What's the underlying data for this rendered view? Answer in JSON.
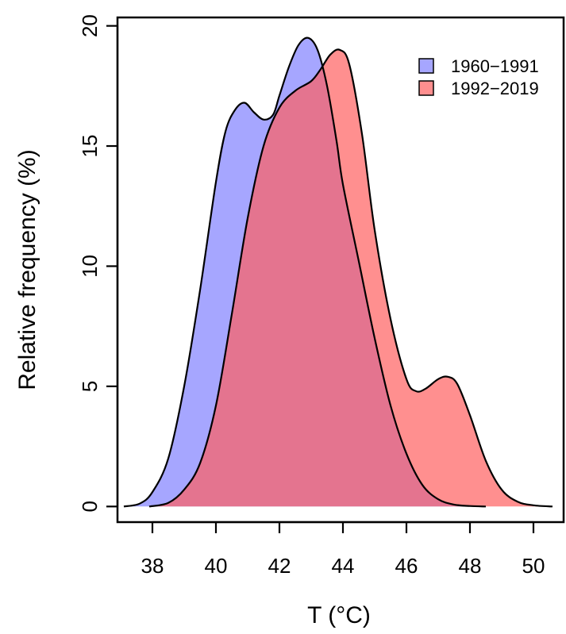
{
  "chart_data": {
    "type": "area",
    "title": "",
    "xlabel": "T (°C)",
    "ylabel": "Relative frequency (%)",
    "xlim": [
      36.9,
      50.95
    ],
    "ylim": [
      -0.65,
      20.35
    ],
    "x_ticks": [
      38,
      40,
      42,
      44,
      46,
      48,
      50
    ],
    "y_ticks": [
      0,
      5,
      10,
      15,
      20
    ],
    "legend_position": "top-right",
    "grid": false,
    "series": [
      {
        "name": "1960−1991",
        "color": "#8080ff",
        "x": [
          37.1,
          37.6,
          38.0,
          38.5,
          39.0,
          39.5,
          40.0,
          40.3,
          40.6,
          40.9,
          41.2,
          41.5,
          41.8,
          42.0,
          42.3,
          42.6,
          42.9,
          43.2,
          43.5,
          43.8,
          44.0,
          44.5,
          45.0,
          45.5,
          46.0,
          46.5,
          47.0,
          47.5,
          48.0,
          48.5
        ],
        "y": [
          0,
          0.12,
          0.6,
          2.0,
          5.0,
          9.0,
          13.5,
          15.6,
          16.5,
          16.8,
          16.4,
          16.1,
          16.3,
          17.1,
          18.3,
          19.2,
          19.5,
          19.0,
          17.5,
          15.2,
          13.4,
          10.2,
          7.0,
          4.2,
          2.2,
          0.9,
          0.3,
          0.08,
          0.02,
          0
        ]
      },
      {
        "name": "1992−2019",
        "color": "#ff6060",
        "x": [
          37.9,
          38.5,
          39.0,
          39.5,
          40.0,
          40.5,
          41.0,
          41.5,
          42.0,
          42.5,
          43.0,
          43.3,
          43.6,
          43.9,
          44.2,
          44.6,
          45.0,
          45.5,
          46.0,
          46.3,
          46.6,
          47.0,
          47.3,
          47.6,
          48.0,
          48.5,
          49.0,
          49.5,
          50.0,
          50.6
        ],
        "y": [
          0,
          0.15,
          0.7,
          1.8,
          4.2,
          8.0,
          12.0,
          15.0,
          16.6,
          17.3,
          17.7,
          18.2,
          18.8,
          19.0,
          18.4,
          15.5,
          11.5,
          7.8,
          5.3,
          4.8,
          4.9,
          5.3,
          5.4,
          5.1,
          3.8,
          1.9,
          0.7,
          0.2,
          0.05,
          0
        ]
      }
    ]
  }
}
